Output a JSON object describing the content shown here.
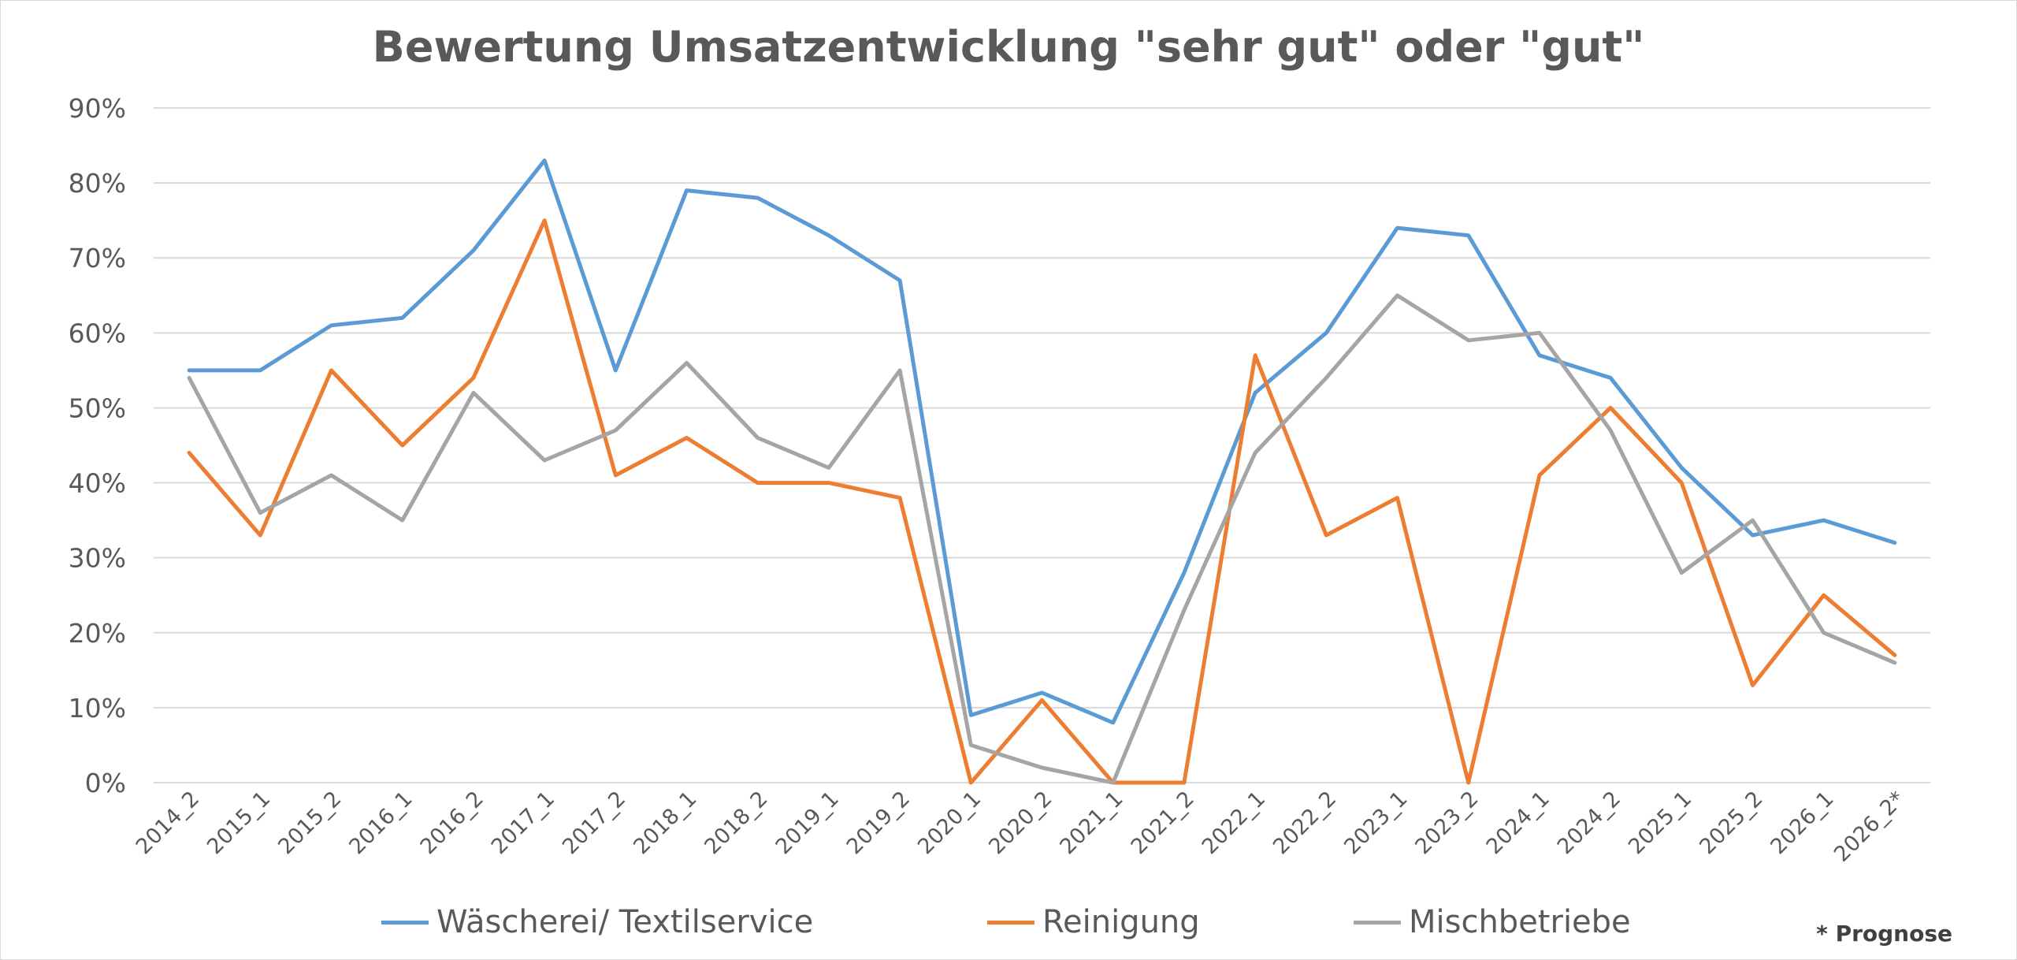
{
  "colors": {
    "waescherei": "#5b9bd5",
    "reinigung": "#ed7d31",
    "misch": "#a5a5a5",
    "grid": "#d9d9d9",
    "text": "#595959"
  },
  "footnote": "* Prognose",
  "chart_data": {
    "type": "line",
    "title": "Bewertung Umsatzentwicklung \"sehr gut\" oder \"gut\"",
    "xlabel": "",
    "ylabel": "",
    "ylim": [
      0,
      90
    ],
    "y_ticks": [
      "0%",
      "10%",
      "20%",
      "30%",
      "40%",
      "50%",
      "60%",
      "70%",
      "80%",
      "90%"
    ],
    "grid": true,
    "legend_position": "bottom",
    "categories": [
      "2014_2",
      "2015_1",
      "2015_2",
      "2016_1",
      "2016_2",
      "2017_1",
      "2017_2",
      "2018_1",
      "2018_2",
      "2019_1",
      "2019_2",
      "2020_1",
      "2020_2",
      "2021_1",
      "2021_2",
      "2022_1",
      "2022_2",
      "2023_1",
      "2023_2",
      "2024_1",
      "2024_2",
      "2025_1",
      "2025_2",
      "2026_1",
      "2026_2*"
    ],
    "series": [
      {
        "name": "Wäscherei/ Textilservice",
        "color": "#5b9bd5",
        "values": [
          55,
          55,
          61,
          62,
          71,
          83,
          55,
          79,
          78,
          73,
          67,
          9,
          12,
          8,
          28,
          52,
          60,
          74,
          73,
          57,
          54,
          42,
          33,
          35,
          32
        ]
      },
      {
        "name": "Reinigung",
        "color": "#ed7d31",
        "values": [
          44,
          33,
          55,
          45,
          54,
          75,
          41,
          46,
          40,
          40,
          38,
          0,
          11,
          0,
          0,
          57,
          33,
          38,
          0,
          41,
          50,
          40,
          13,
          25,
          17
        ]
      },
      {
        "name": "Mischbetriebe",
        "color": "#a5a5a5",
        "values": [
          54,
          36,
          41,
          35,
          52,
          43,
          47,
          56,
          46,
          42,
          55,
          5,
          2,
          0,
          23,
          44,
          54,
          65,
          59,
          60,
          47,
          28,
          35,
          20,
          16
        ]
      }
    ]
  }
}
